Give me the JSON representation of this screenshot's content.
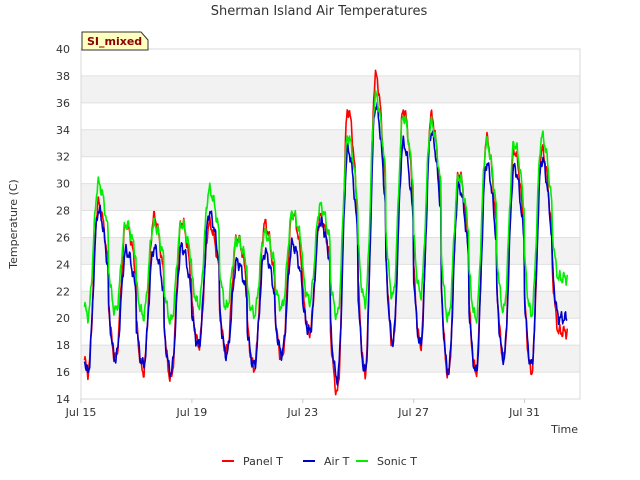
{
  "chart_data": {
    "type": "line",
    "title": "Sherman Island Air Temperatures",
    "xlabel": "Time",
    "ylabel": "Temperature (C)",
    "badge": "SI_mixed",
    "ylim": [
      14,
      40
    ],
    "yticks": [
      14,
      16,
      18,
      20,
      22,
      24,
      26,
      28,
      30,
      32,
      34,
      36,
      38,
      40
    ],
    "xlim": [
      "2023-07-15",
      "2023-08-02"
    ],
    "xticks": [
      {
        "date": "2023-07-15",
        "label": "Jul 15"
      },
      {
        "date": "2023-07-19",
        "label": "Jul 19"
      },
      {
        "date": "2023-07-23",
        "label": "Jul 23"
      },
      {
        "date": "2023-07-27",
        "label": "Jul 27"
      },
      {
        "date": "2023-07-31",
        "label": "Jul 31"
      }
    ],
    "grid": true,
    "legend_position": "bottom",
    "days": [
      "2023-07-15",
      "2023-07-16",
      "2023-07-17",
      "2023-07-18",
      "2023-07-19",
      "2023-07-20",
      "2023-07-21",
      "2023-07-22",
      "2023-07-23",
      "2023-07-24",
      "2023-07-25",
      "2023-07-26",
      "2023-07-27",
      "2023-07-28",
      "2023-07-29",
      "2023-07-30",
      "2023-07-31",
      "2023-08-01"
    ],
    "series": [
      {
        "name": "Panel T",
        "color": "#ff0000",
        "daily_max": [
          28.5,
          27.0,
          27.5,
          27.2,
          27.0,
          26.0,
          27.0,
          27.8,
          27.5,
          35.5,
          38.0,
          35.5,
          35.0,
          30.8,
          33.3,
          32.5,
          32.5,
          19.0
        ],
        "daily_min": [
          16.0,
          17.0,
          16.0,
          15.5,
          18.0,
          17.5,
          16.3,
          17.0,
          19.0,
          14.5,
          16.0,
          18.0,
          18.0,
          15.8,
          16.0,
          17.0,
          16.0,
          19.0
        ]
      },
      {
        "name": "Air T",
        "color": "#0000cc",
        "daily_max": [
          28.0,
          25.0,
          25.2,
          25.3,
          27.8,
          24.2,
          24.9,
          25.5,
          27.2,
          32.5,
          35.8,
          33.0,
          33.8,
          29.8,
          31.5,
          31.2,
          31.8,
          20.0
        ],
        "daily_min": [
          16.0,
          17.0,
          16.5,
          16.0,
          18.0,
          17.3,
          16.5,
          17.4,
          19.0,
          15.5,
          16.0,
          18.3,
          18.0,
          16.0,
          16.0,
          17.0,
          16.5,
          20.0
        ]
      },
      {
        "name": "Sonic T",
        "color": "#00ee00",
        "daily_max": [
          30.0,
          27.0,
          27.0,
          27.0,
          29.5,
          25.8,
          26.3,
          27.8,
          28.3,
          33.5,
          36.5,
          35.0,
          34.5,
          30.5,
          33.0,
          33.0,
          33.5,
          23.0
        ],
        "daily_min": [
          20.2,
          20.5,
          20.2,
          19.8,
          21.0,
          20.8,
          20.3,
          20.8,
          21.3,
          20.2,
          21.2,
          21.6,
          21.8,
          20.0,
          20.0,
          20.6,
          20.3,
          23.0
        ]
      }
    ]
  }
}
